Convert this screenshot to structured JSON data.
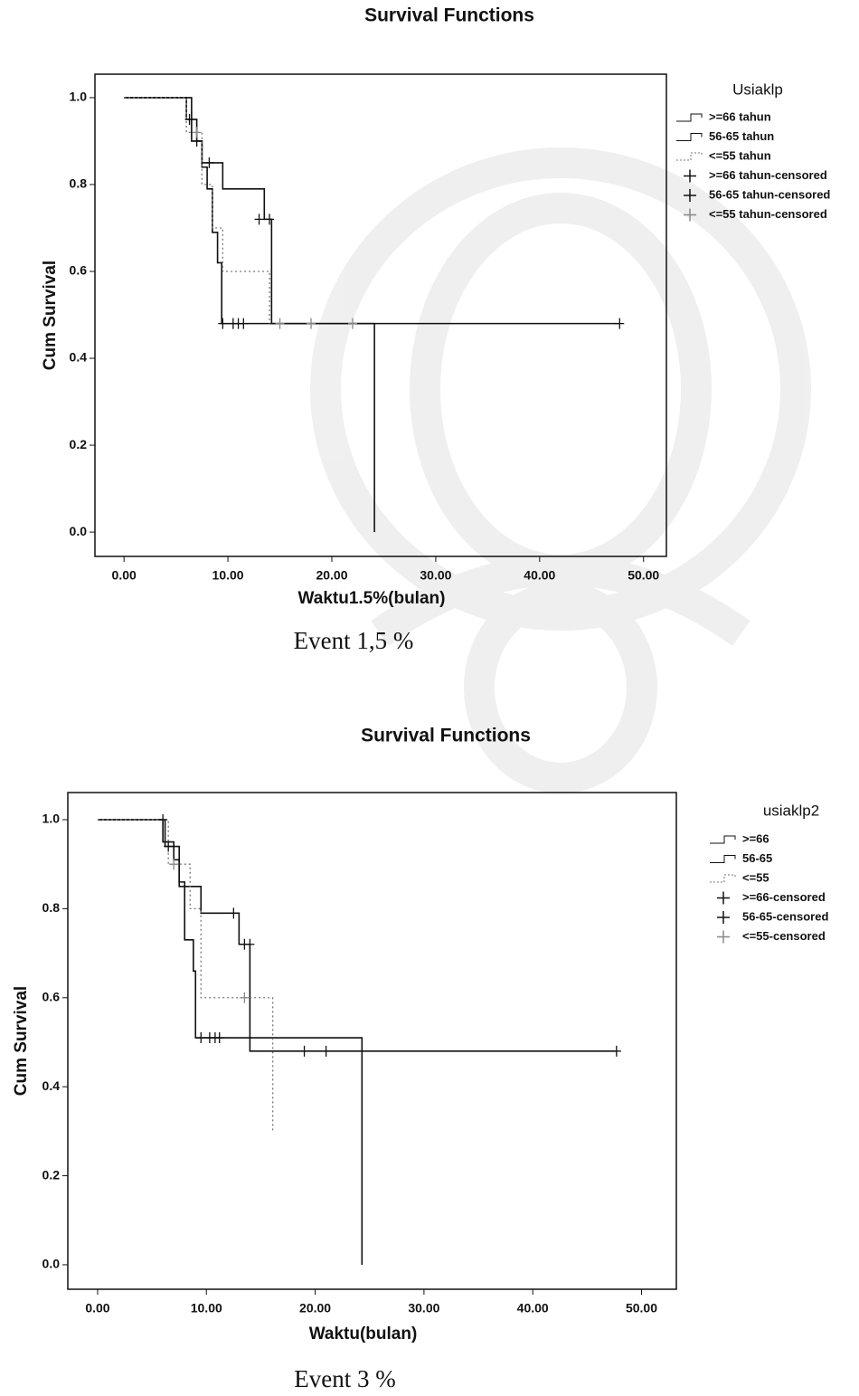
{
  "chart_data": [
    {
      "type": "survival",
      "title": "Survival Functions",
      "x_label": "Waktu1.5%(bulan)",
      "y_label": "Cum Survival",
      "caption": "Event 1,5 %",
      "legend_title": "Usiaklp",
      "xlim": [
        -2.8,
        52.2
      ],
      "ylim": [
        -0.056,
        1.054
      ],
      "xticks": [
        {
          "value": 0,
          "label": "0.00"
        },
        {
          "value": 10,
          "label": "10.00"
        },
        {
          "value": 20,
          "label": "20.00"
        },
        {
          "value": 30,
          "label": "30.00"
        },
        {
          "value": 40,
          "label": "40.00"
        },
        {
          "value": 50,
          "label": "50.00"
        }
      ],
      "yticks": [
        {
          "value": 0,
          "label": "0.0"
        },
        0.2,
        0.4,
        0.6,
        0.8,
        {
          "value": 1,
          "label": "1.0"
        }
      ],
      "series": [
        {
          "name": ">=66 tahun",
          "style": "step",
          "dash": "solid",
          "color": "#111",
          "x": [
            0,
            6,
            7,
            7.5,
            8,
            8.5,
            9,
            9.4,
            24,
            24.1
          ],
          "values": [
            1,
            0.95,
            0.9,
            0.84,
            0.79,
            0.69,
            0.62,
            0.48,
            0.48,
            0
          ]
        },
        {
          "name": "56-65 tahun",
          "style": "step",
          "dash": "solid",
          "color": "#111",
          "x": [
            0,
            6.5,
            7.5,
            9.5,
            13.5,
            14.2,
            47.7
          ],
          "values": [
            1,
            0.9,
            0.85,
            0.79,
            0.72,
            0.48,
            0.48
          ]
        },
        {
          "name": "<=55 tahun",
          "style": "step",
          "dash": "dotted",
          "color": "#777",
          "x": [
            0,
            6,
            7.5,
            8.5,
            9.5,
            14
          ],
          "values": [
            1,
            0.92,
            0.8,
            0.7,
            0.6,
            0.48
          ]
        },
        {
          "name": ">=66 tahun-censored",
          "style": "censor",
          "color": "#111",
          "x": [
            6.3,
            9.5,
            10.5,
            11,
            11.5
          ],
          "values": [
            0.95,
            0.48,
            0.48,
            0.48,
            0.48
          ]
        },
        {
          "name": "56-65 tahun-censored",
          "style": "censor",
          "color": "#111",
          "x": [
            7,
            8.2,
            13,
            14,
            47.7
          ],
          "values": [
            0.9,
            0.85,
            0.72,
            0.72,
            0.48
          ]
        },
        {
          "name": "<=55 tahun-censored",
          "style": "censor",
          "color": "#888",
          "x": [
            7,
            15,
            18,
            22
          ],
          "values": [
            0.92,
            0.48,
            0.48,
            0.48
          ]
        }
      ]
    },
    {
      "type": "survival",
      "title": "Survival Functions",
      "x_label": "Waktu(bulan)",
      "y_label": "Cum Survival",
      "caption": "Event 3 %",
      "legend_title": "usiaklp2",
      "xlim": [
        -2.74,
        53.2
      ],
      "ylim": [
        -0.055,
        1.061
      ],
      "xticks": [
        {
          "value": 0,
          "label": "0.00"
        },
        {
          "value": 10,
          "label": "10.00"
        },
        {
          "value": 20,
          "label": "20.00"
        },
        {
          "value": 30,
          "label": "30.00"
        },
        {
          "value": 40,
          "label": "40.00"
        },
        {
          "value": 50,
          "label": "50.00"
        }
      ],
      "yticks": [
        {
          "value": 0,
          "label": "0.0"
        },
        0.2,
        0.4,
        0.6,
        0.8,
        {
          "value": 1,
          "label": "1.0"
        }
      ],
      "series": [
        {
          "name": ">=66",
          "style": "step",
          "dash": "solid",
          "color": "#111",
          "x": [
            0,
            6,
            7,
            7.5,
            8,
            8.8,
            9,
            24.2,
            24.3
          ],
          "values": [
            1,
            0.95,
            0.91,
            0.86,
            0.73,
            0.66,
            0.51,
            0.51,
            0
          ]
        },
        {
          "name": "56-65",
          "style": "step",
          "dash": "solid",
          "color": "#111",
          "x": [
            0,
            6.2,
            7.5,
            9.5,
            13,
            14,
            47.7
          ],
          "values": [
            1,
            0.94,
            0.85,
            0.79,
            0.72,
            0.48,
            0.48
          ]
        },
        {
          "name": "<=55",
          "style": "step",
          "dash": "dotted",
          "color": "#777",
          "x": [
            0,
            6.5,
            8.5,
            9.5,
            16,
            16.1
          ],
          "values": [
            1,
            0.9,
            0.8,
            0.6,
            0.6,
            0.3
          ]
        },
        {
          "name": ">=66-censored",
          "style": "censor",
          "color": "#111",
          "x": [
            6,
            9.5,
            10.3,
            10.8,
            11.2
          ],
          "values": [
            1,
            0.51,
            0.51,
            0.51,
            0.51
          ]
        },
        {
          "name": "56-65-censored",
          "style": "censor",
          "color": "#111",
          "x": [
            6.5,
            12.5,
            13.5,
            14,
            19,
            21,
            47.7
          ],
          "values": [
            0.94,
            0.79,
            0.72,
            0.72,
            0.48,
            0.48,
            0.48
          ]
        },
        {
          "name": "<=55-censored",
          "style": "censor",
          "color": "#888",
          "x": [
            7,
            13.5
          ],
          "values": [
            0.9,
            0.6
          ]
        }
      ]
    }
  ]
}
